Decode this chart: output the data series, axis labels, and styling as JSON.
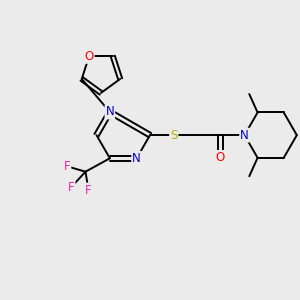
{
  "bg_color": "#ebebeb",
  "bond_color": "#000000",
  "atom_colors": {
    "O": "#ff0000",
    "N": "#0000cc",
    "S": "#bbaa00",
    "F": "#ee22aa",
    "C": "#000000"
  },
  "font_size_atom": 8.5,
  "line_width": 1.4,
  "fig_size": [
    3.0,
    3.0
  ],
  "dpi": 100
}
